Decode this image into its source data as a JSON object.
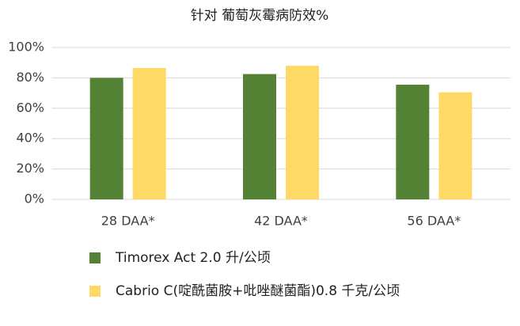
{
  "chart_data": {
    "type": "bar",
    "title": "针对 葡萄灰霉病防效%",
    "categories": [
      "28 DAA*",
      "42 DAA*",
      "56 DAA*"
    ],
    "series": [
      {
        "name": "Timorex Act 2.0 升/公顷",
        "color": "#548235",
        "values": [
          80,
          82.5,
          75.5
        ]
      },
      {
        "name": "Cabrio C(啶酰菌胺+吡唑醚菌酯)0.8 千克/公顷",
        "color": "#ffd966",
        "values": [
          86.5,
          88,
          70.5
        ]
      }
    ],
    "ylim": [
      0,
      100
    ],
    "yticks": [
      {
        "value": 0,
        "label": "0%"
      },
      {
        "value": 20,
        "label": "20%"
      },
      {
        "value": 40,
        "label": "40%"
      },
      {
        "value": 60,
        "label": "60%"
      },
      {
        "value": 80,
        "label": "80%"
      },
      {
        "value": 100,
        "label": "100%"
      }
    ],
    "grid": true,
    "legend": "bottom"
  }
}
